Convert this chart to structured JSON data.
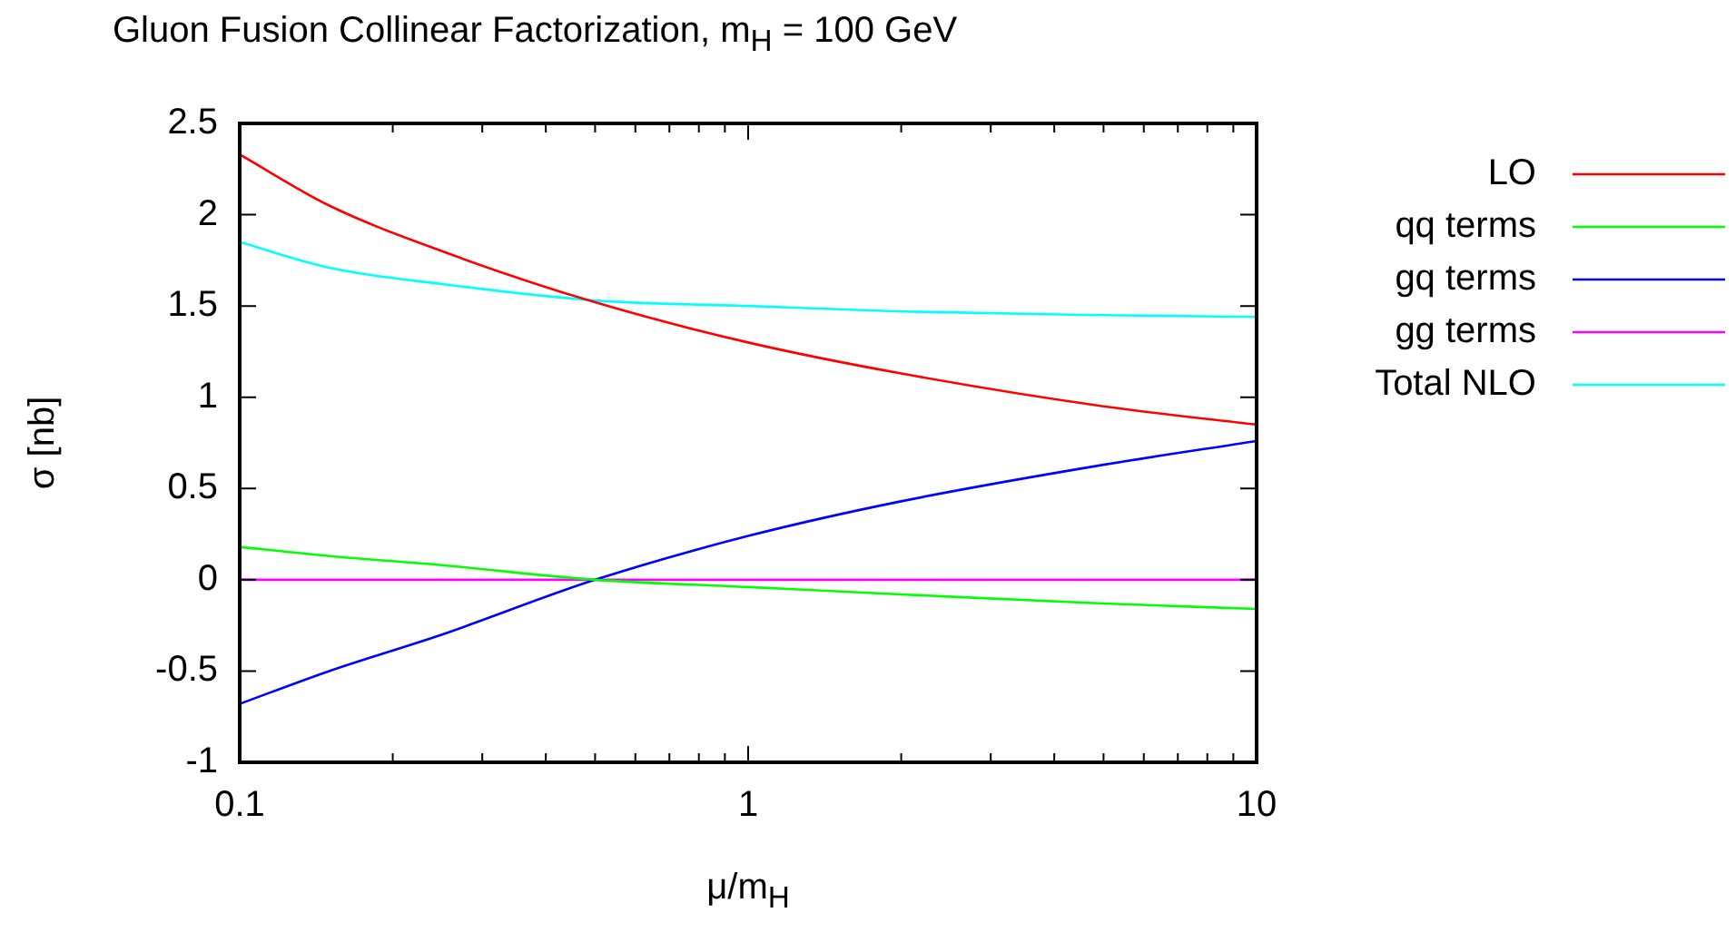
{
  "chart_data": {
    "type": "line",
    "title": "Gluon Fusion Collinear Factorization, m$_{H}$ = 100 GeV",
    "xlabel": "μ/m$_{H}$",
    "ylabel": "σ [nb]",
    "x": [
      0.1,
      0.15,
      0.25,
      0.5,
      1,
      2,
      5,
      10
    ],
    "series": [
      {
        "name": "LO",
        "color": "#ff0000",
        "values": [
          2.33,
          2.05,
          1.8,
          1.52,
          1.3,
          1.13,
          0.95,
          0.85
        ]
      },
      {
        "name": "qq terms",
        "color": "#00ff00",
        "values": [
          0.18,
          0.13,
          0.08,
          0.0,
          -0.04,
          -0.08,
          -0.13,
          -0.16
        ]
      },
      {
        "name": "gq terms",
        "color": "#0000ff",
        "values": [
          -0.68,
          -0.5,
          -0.3,
          0.0,
          0.24,
          0.43,
          0.63,
          0.76
        ]
      },
      {
        "name": "gg terms",
        "color": "#ff00ff",
        "values": [
          0,
          0,
          0,
          0,
          0,
          0,
          0,
          0
        ]
      },
      {
        "name": "Total NLO",
        "color": "#00ffff",
        "values": [
          1.85,
          1.71,
          1.62,
          1.53,
          1.5,
          1.47,
          1.45,
          1.44
        ]
      }
    ],
    "log": "x",
    "xlim": [
      0.1,
      10
    ],
    "ylim": [
      -1,
      2.5
    ],
    "xticks": [
      0.1,
      {
        "value": 0.2,
        "label": null
      },
      {
        "value": 0.3,
        "label": null
      },
      {
        "value": 0.4,
        "label": null
      },
      {
        "value": 0.5,
        "label": null
      },
      {
        "value": 0.6,
        "label": null
      },
      {
        "value": 0.7,
        "label": null
      },
      {
        "value": 0.8,
        "label": null
      },
      {
        "value": 0.9,
        "label": null
      },
      1,
      {
        "value": 2,
        "label": null
      },
      {
        "value": 3,
        "label": null
      },
      {
        "value": 4,
        "label": null
      },
      {
        "value": 5,
        "label": null
      },
      {
        "value": 6,
        "label": null
      },
      {
        "value": 7,
        "label": null
      },
      {
        "value": 8,
        "label": null
      },
      {
        "value": 9,
        "label": null
      },
      10
    ],
    "yticks": [
      -1,
      -0.5,
      0,
      0.5,
      1,
      1.5,
      2,
      2.5
    ],
    "grid": false,
    "legend": "right",
    "marker": "none",
    "line_style": "solid"
  }
}
